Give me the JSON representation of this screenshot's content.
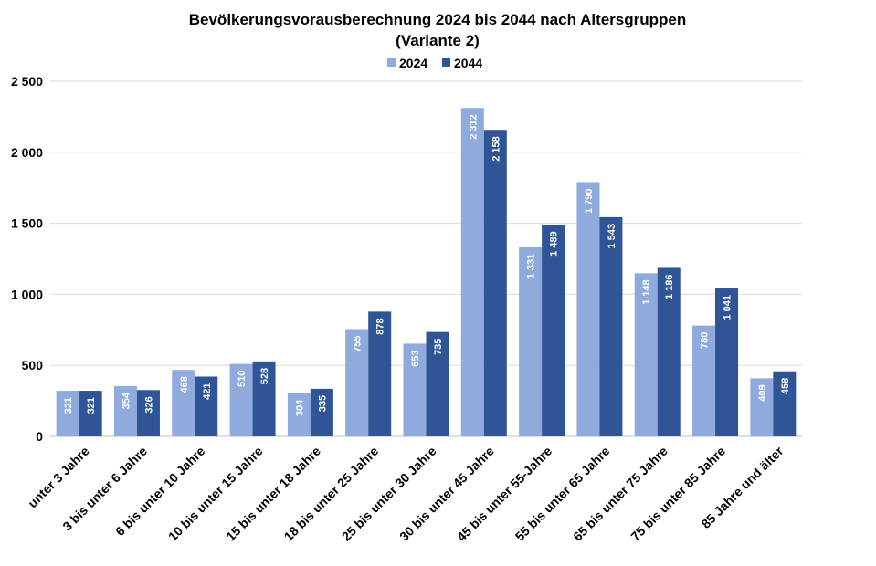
{
  "chart_data": {
    "type": "bar",
    "title": "Bevölkerungsvorausberechnung 2024 bis 2044 nach Altersgruppen",
    "subtitle": "(Variante 2)",
    "xlabel": "",
    "ylabel": "",
    "ylim": [
      0,
      2500
    ],
    "yticks": [
      {
        "value": 0,
        "label": "0"
      },
      {
        "value": 500,
        "label": "500"
      },
      {
        "value": 1000,
        "label": "1 000"
      },
      {
        "value": 1500,
        "label": "1 500"
      },
      {
        "value": 2000,
        "label": "2 000"
      },
      {
        "value": 2500,
        "label": "2 500"
      }
    ],
    "grid": true,
    "legend_position": "top",
    "categories": [
      "unter 3 Jahre",
      "3 bis unter 6 Jahre",
      "6 bis unter 10 Jahre",
      "10 bis unter 15 Jahre",
      "15 bis unter 18 Jahre",
      "18 bis unter 25 Jahre",
      "25 bis unter 30 Jahre",
      "30 bis unter 45 Jahre",
      "45 bis unter 55-Jahre",
      "55 bis unter 65 Jahre",
      "65 bis unter 75 Jahre",
      "75 bis unter 85 Jahre",
      "85 Jahre und älter"
    ],
    "series": [
      {
        "name": "2024",
        "color": "#8faadc",
        "values": [
          321,
          354,
          468,
          510,
          304,
          755,
          653,
          2312,
          1331,
          1790,
          1148,
          780,
          409
        ],
        "labels": [
          "321",
          "354",
          "468",
          "510",
          "304",
          "755",
          "653",
          "2 312",
          "1 331",
          "1 790",
          "1 148",
          "780",
          "409"
        ]
      },
      {
        "name": "2044",
        "color": "#2f5597",
        "values": [
          321,
          326,
          421,
          528,
          335,
          878,
          735,
          2158,
          1489,
          1543,
          1186,
          1041,
          458
        ],
        "labels": [
          "321",
          "326",
          "421",
          "528",
          "335",
          "878",
          "735",
          "2 158",
          "1 489",
          "1 543",
          "1 186",
          "1 041",
          "458"
        ]
      }
    ]
  }
}
